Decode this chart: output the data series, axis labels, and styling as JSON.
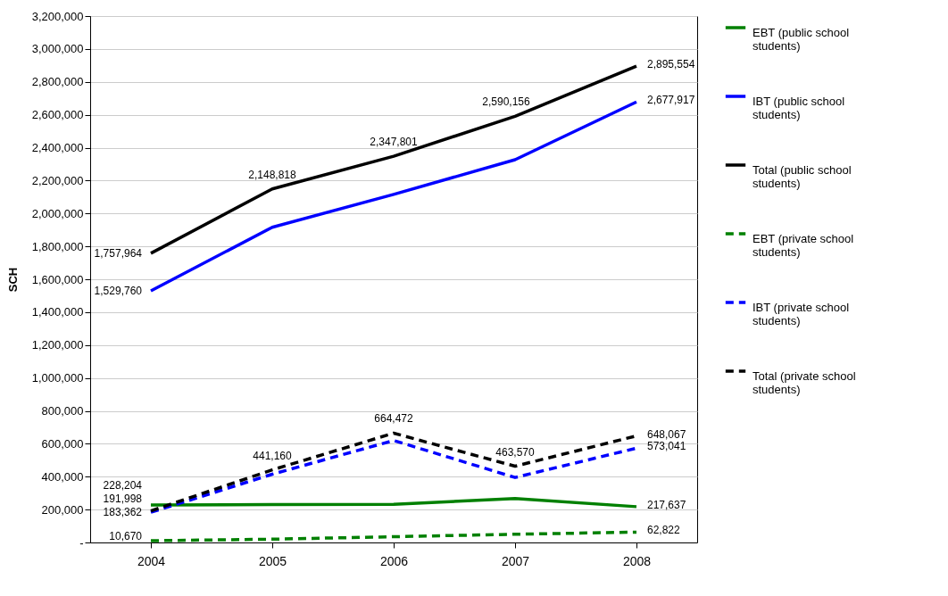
{
  "chart_data": {
    "type": "line",
    "ylabel": "SCH",
    "categories": [
      "2004",
      "2005",
      "2006",
      "2007",
      "2008"
    ],
    "ylim": [
      0,
      3200000
    ],
    "yticks": [
      {
        "value": 0,
        "label": "-"
      },
      {
        "value": 200000,
        "label": "200,000"
      },
      {
        "value": 400000,
        "label": "400,000"
      },
      {
        "value": 600000,
        "label": "600,000"
      },
      {
        "value": 800000,
        "label": "800,000"
      },
      {
        "value": 1000000,
        "label": "1,000,000"
      },
      {
        "value": 1200000,
        "label": "1,200,000"
      },
      {
        "value": 1400000,
        "label": "1,400,000"
      },
      {
        "value": 1600000,
        "label": "1,600,000"
      },
      {
        "value": 1800000,
        "label": "1,800,000"
      },
      {
        "value": 2000000,
        "label": "2,000,000"
      },
      {
        "value": 2200000,
        "label": "2,200,000"
      },
      {
        "value": 2400000,
        "label": "2,400,000"
      },
      {
        "value": 2600000,
        "label": "2,600,000"
      },
      {
        "value": 2800000,
        "label": "2,800,000"
      },
      {
        "value": 3000000,
        "label": "3,000,000"
      },
      {
        "value": 3200000,
        "label": "3,200,000"
      }
    ],
    "grid": "y",
    "legend": "right",
    "marker": "none",
    "series": [
      {
        "name": "EBT (public school students)",
        "color": "#008000",
        "line_style": "solid",
        "values": [
          228204,
          230000,
          232000,
          267000,
          217637
        ],
        "value_labels": [
          "228,204",
          null,
          null,
          null,
          "217,637"
        ]
      },
      {
        "name": "IBT (public school students)",
        "color": "#0000ff",
        "line_style": "solid",
        "values": [
          1529760,
          1916000,
          2116000,
          2327000,
          2677917
        ],
        "value_labels": [
          "1,529,760",
          null,
          null,
          null,
          "2,677,917"
        ]
      },
      {
        "name": "Total (public school students)",
        "color": "#000000",
        "line_style": "solid",
        "values": [
          1757964,
          2148818,
          2347801,
          2590156,
          2895554
        ],
        "value_labels": [
          "1,757,964",
          "2,148,818",
          "2,347,801",
          "2,590,156",
          "2,895,554"
        ]
      },
      {
        "name": "EBT (private school students)",
        "color": "#008000",
        "line_style": "dashed",
        "values": [
          10670,
          20000,
          35000,
          50000,
          62822
        ],
        "value_labels": [
          "10,670",
          null,
          null,
          null,
          "62,822"
        ]
      },
      {
        "name": "IBT (private school students)",
        "color": "#0000ff",
        "line_style": "dashed",
        "values": [
          183362,
          415000,
          620000,
          395000,
          573041
        ],
        "value_labels": [
          "183,362",
          null,
          null,
          null,
          "573,041"
        ]
      },
      {
        "name": "Total (private school students)",
        "color": "#000000",
        "line_style": "dashed",
        "values": [
          191998,
          441160,
          664472,
          463570,
          648067
        ],
        "value_labels": [
          "191,998",
          "441,160",
          "664,472",
          "463,570",
          "648,067"
        ]
      }
    ]
  }
}
